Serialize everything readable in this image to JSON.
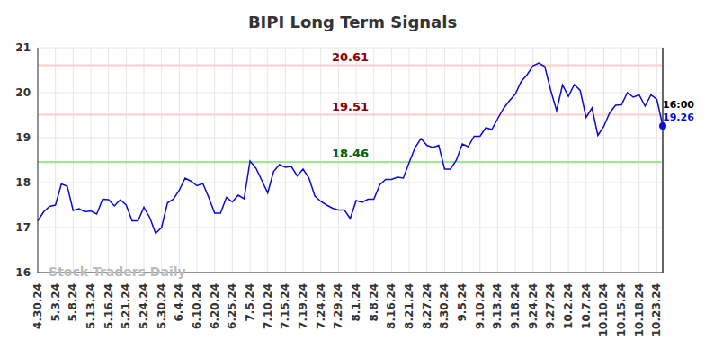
{
  "chart_data": {
    "type": "line",
    "title": "BIPI Long Term Signals",
    "watermark": "Stock Traders Daily",
    "categories": [
      "4.30.24",
      null,
      null,
      "5.3.24",
      null,
      null,
      "5.8.24",
      null,
      null,
      "5.13.24",
      null,
      null,
      "5.16.24",
      null,
      null,
      "5.21.24",
      null,
      null,
      "5.24.24",
      null,
      null,
      "5.30.24",
      null,
      null,
      "6.4.24",
      null,
      null,
      "6.10.24",
      null,
      null,
      "6.20.24",
      null,
      null,
      "6.25.24",
      null,
      null,
      "7.5.24",
      null,
      null,
      "7.10.24",
      null,
      null,
      "7.15.24",
      null,
      null,
      "7.19.24",
      null,
      null,
      "7.24.24",
      null,
      null,
      "7.29.24",
      null,
      null,
      "8.1.24",
      null,
      null,
      "8.8.24",
      null,
      null,
      "8.16.24",
      null,
      null,
      "8.21.24",
      null,
      null,
      "8.27.24",
      null,
      null,
      "8.30.24",
      null,
      null,
      "9.5.24",
      null,
      null,
      "9.10.24",
      null,
      null,
      "9.13.24",
      null,
      null,
      "9.18.24",
      null,
      null,
      "9.24.24",
      null,
      null,
      "9.27.24",
      null,
      null,
      "10.2.24",
      null,
      null,
      "10.7.24",
      null,
      null,
      "10.10.24",
      null,
      null,
      "10.15.24",
      null,
      null,
      "10.18.24",
      null,
      null,
      "10.23.24",
      null
    ],
    "values": [
      17.15,
      17.35,
      17.47,
      17.5,
      17.97,
      17.92,
      17.38,
      17.42,
      17.35,
      17.37,
      17.3,
      17.63,
      17.62,
      17.48,
      17.62,
      17.5,
      17.15,
      17.15,
      17.45,
      17.22,
      16.87,
      17.0,
      17.55,
      17.63,
      17.83,
      18.1,
      18.03,
      17.93,
      17.98,
      17.67,
      17.32,
      17.32,
      17.67,
      17.57,
      17.72,
      17.64,
      18.48,
      18.32,
      18.05,
      17.77,
      18.25,
      18.4,
      18.34,
      18.36,
      18.15,
      18.3,
      18.1,
      17.7,
      17.58,
      17.5,
      17.43,
      17.39,
      17.39,
      17.2,
      17.6,
      17.56,
      17.63,
      17.63,
      17.95,
      18.07,
      18.07,
      18.12,
      18.1,
      18.45,
      18.78,
      18.98,
      18.83,
      18.78,
      18.83,
      18.3,
      18.3,
      18.5,
      18.86,
      18.8,
      19.03,
      19.03,
      19.22,
      19.18,
      19.42,
      19.65,
      19.82,
      19.97,
      20.25,
      20.4,
      20.6,
      20.66,
      20.58,
      20.05,
      19.6,
      20.17,
      19.92,
      20.18,
      20.05,
      19.45,
      19.66,
      19.05,
      19.25,
      19.55,
      19.72,
      19.73,
      20.0,
      19.9,
      19.95,
      19.7,
      19.95,
      19.85,
      19.26
    ],
    "color": "#0b0bd6",
    "ylim": [
      16,
      21
    ],
    "yticks": [
      16,
      17,
      18,
      19,
      20,
      21
    ],
    "grid": true,
    "annotations": [
      {
        "value": 20.61,
        "label": "20.61",
        "color": "#ffcccc",
        "text_color": "#8b0000"
      },
      {
        "value": 19.51,
        "label": "19.51",
        "color": "#ffcccc",
        "text_color": "#8b0000"
      },
      {
        "value": 18.46,
        "label": "18.46",
        "color": "#90ee90",
        "text_color": "#006400"
      }
    ],
    "end_label": {
      "time": "16:00",
      "value": 19.26
    }
  }
}
